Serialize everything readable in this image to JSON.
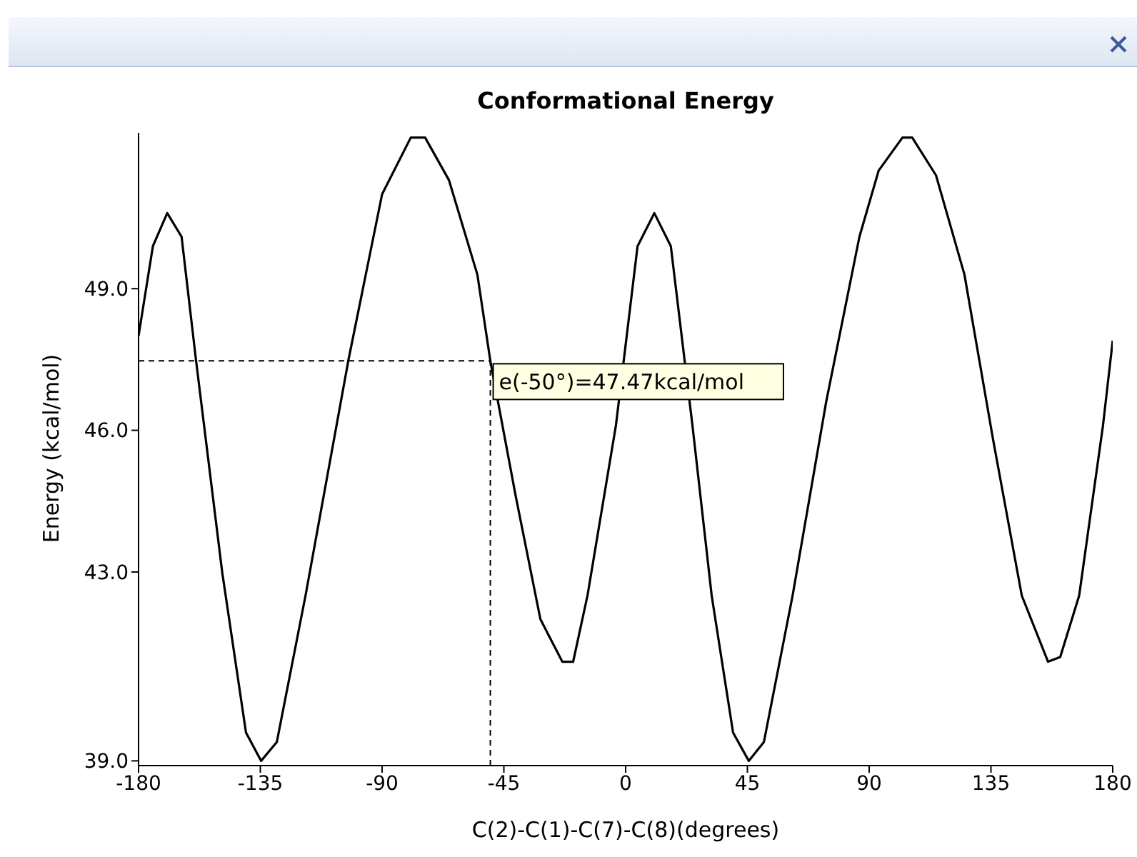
{
  "chart_data": {
    "type": "line",
    "title": "Conformational Energy",
    "xlabel": "C(2)-C(1)-C(7)-C(8)(degrees)",
    "ylabel": "Energy (kcal/mol)",
    "x": [
      -180,
      -174.7,
      -169.4,
      -164.1,
      -158.8,
      -149.1,
      -140.3,
      -134.7,
      -128.9,
      -118.3,
      -102.4,
      -90,
      -79.4,
      -74.1,
      -65.3,
      -54.8,
      -50,
      -40.6,
      -31.5,
      -23.4,
      -19.4,
      -14.1,
      -3.6,
      4.4,
      10.6,
      16.7,
      24.7,
      31.8,
      39.7,
      45.5,
      51.1,
      61.7,
      74.1,
      86.4,
      93.5,
      102.3,
      105.9,
      114.7,
      125.2,
      135.8,
      146.4,
      156.1,
      160.6,
      167.6,
      176.4,
      180
    ],
    "series": [
      {
        "color": "#000000",
        "values": [
          48.0,
          49.9,
          50.6,
          50.1,
          47.5,
          43.0,
          39.6,
          39.0,
          39.4,
          42.5,
          47.5,
          51.0,
          52.2,
          52.2,
          51.3,
          49.3,
          47.47,
          44.6,
          42.0,
          41.1,
          41.1,
          42.5,
          46.1,
          49.9,
          50.6,
          49.9,
          46.1,
          42.5,
          39.6,
          39.0,
          39.4,
          42.5,
          46.6,
          50.1,
          51.5,
          52.2,
          52.2,
          51.4,
          49.3,
          45.8,
          42.5,
          41.1,
          41.2,
          42.5,
          46.1,
          47.9
        ]
      }
    ],
    "xlim": [
      -180,
      180
    ],
    "xticks": [
      -180,
      -135,
      -90,
      -45,
      0,
      45,
      90,
      135,
      180
    ],
    "ylim": [
      38.9,
      52.3
    ],
    "yticks": [
      {
        "value": 39,
        "label": "39.0"
      },
      {
        "value": 43,
        "label": "43.0"
      },
      {
        "value": 46,
        "label": "46.0"
      },
      {
        "value": 49,
        "label": "49.0"
      }
    ],
    "ref_lines": [
      {
        "axis": "x",
        "value": -50,
        "line_style": "dashed"
      },
      {
        "axis": "y",
        "value": 47.47,
        "line_style": "dashed"
      }
    ],
    "annotations": [
      {
        "text": "e(-50°)=47.47kcal/mol",
        "x": -50,
        "y": 47.47
      }
    ],
    "grid": false,
    "legend": false,
    "marker": "none",
    "line_style": "solid"
  }
}
